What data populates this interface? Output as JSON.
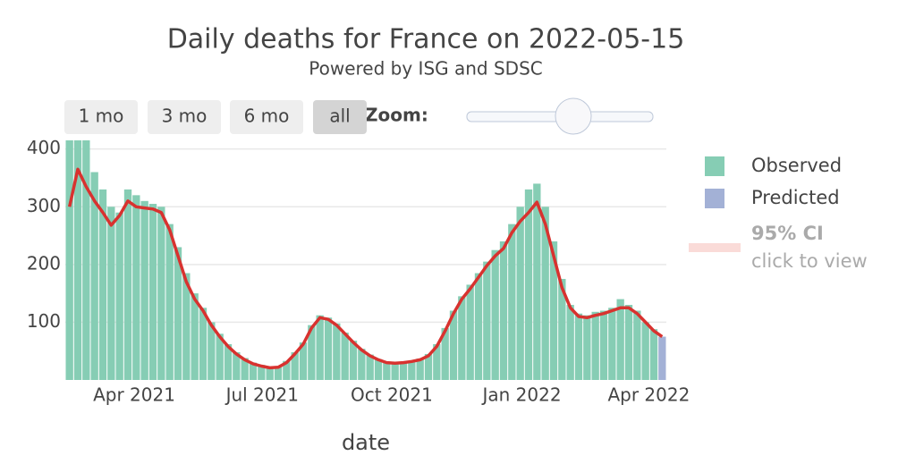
{
  "chart_data": {
    "type": "bar",
    "title": "Daily deaths for France on 2022-05-15",
    "subtitle": "Powered by ISG and SDSC",
    "x_label": "date",
    "buttons": [
      "1 mo",
      "3 mo",
      "6 mo",
      "all"
    ],
    "zoom_label": "Zoom:",
    "ci_label": "95% CI",
    "ci_hint": "click to view",
    "ci_color": "#fadbd8",
    "xlim": [
      0,
      72
    ],
    "xticks": [
      {
        "value": 8.25,
        "label": "Apr 2021"
      },
      {
        "value": 23.6,
        "label": "Jul 2021"
      },
      {
        "value": 39.1,
        "label": "Oct 2021"
      },
      {
        "value": 54.7,
        "label": "Jan 2022"
      },
      {
        "value": 69.9,
        "label": "Apr 2022"
      }
    ],
    "ylim": [
      0,
      415
    ],
    "yticks": [
      100,
      200,
      300,
      400
    ],
    "grid": true,
    "series": [
      {
        "name": "Observed",
        "type": "bar",
        "color": "#86cdb4",
        "values": [
          415,
          415,
          415,
          360,
          330,
          300,
          290,
          330,
          320,
          310,
          305,
          300,
          270,
          230,
          185,
          150,
          125,
          100,
          80,
          62,
          48,
          38,
          30,
          26,
          22,
          24,
          33,
          48,
          65,
          95,
          112,
          108,
          98,
          82,
          68,
          54,
          44,
          36,
          32,
          30,
          31,
          33,
          37,
          45,
          62,
          90,
          120,
          145,
          165,
          185,
          205,
          225,
          240,
          270,
          300,
          330,
          340,
          300,
          240,
          175,
          130,
          115,
          112,
          118,
          120,
          125,
          140,
          130,
          120,
          100,
          88,
          null
        ]
      },
      {
        "name": "Predicted",
        "type": "bar",
        "color": "#a3b1d6",
        "values": [
          null,
          null,
          null,
          null,
          null,
          null,
          null,
          null,
          null,
          null,
          null,
          null,
          null,
          null,
          null,
          null,
          null,
          null,
          null,
          null,
          null,
          null,
          null,
          null,
          null,
          null,
          null,
          null,
          null,
          null,
          null,
          null,
          null,
          null,
          null,
          null,
          null,
          null,
          null,
          null,
          null,
          null,
          null,
          null,
          null,
          null,
          null,
          null,
          null,
          null,
          null,
          null,
          null,
          null,
          null,
          null,
          null,
          null,
          null,
          null,
          null,
          null,
          null,
          null,
          null,
          null,
          null,
          null,
          null,
          null,
          null,
          75
        ]
      },
      {
        "type": "line",
        "color": "#d8322f",
        "values": [
          300,
          365,
          335,
          310,
          290,
          268,
          285,
          310,
          300,
          298,
          296,
          290,
          260,
          215,
          170,
          140,
          120,
          95,
          75,
          58,
          45,
          35,
          28,
          24,
          21,
          22,
          30,
          45,
          62,
          90,
          108,
          105,
          95,
          80,
          65,
          52,
          42,
          35,
          30,
          29,
          30,
          32,
          35,
          42,
          58,
          85,
          115,
          140,
          158,
          178,
          198,
          215,
          228,
          255,
          275,
          290,
          308,
          270,
          215,
          160,
          125,
          110,
          108,
          112,
          115,
          120,
          125,
          125,
          115,
          100,
          85,
          75
        ]
      }
    ]
  }
}
